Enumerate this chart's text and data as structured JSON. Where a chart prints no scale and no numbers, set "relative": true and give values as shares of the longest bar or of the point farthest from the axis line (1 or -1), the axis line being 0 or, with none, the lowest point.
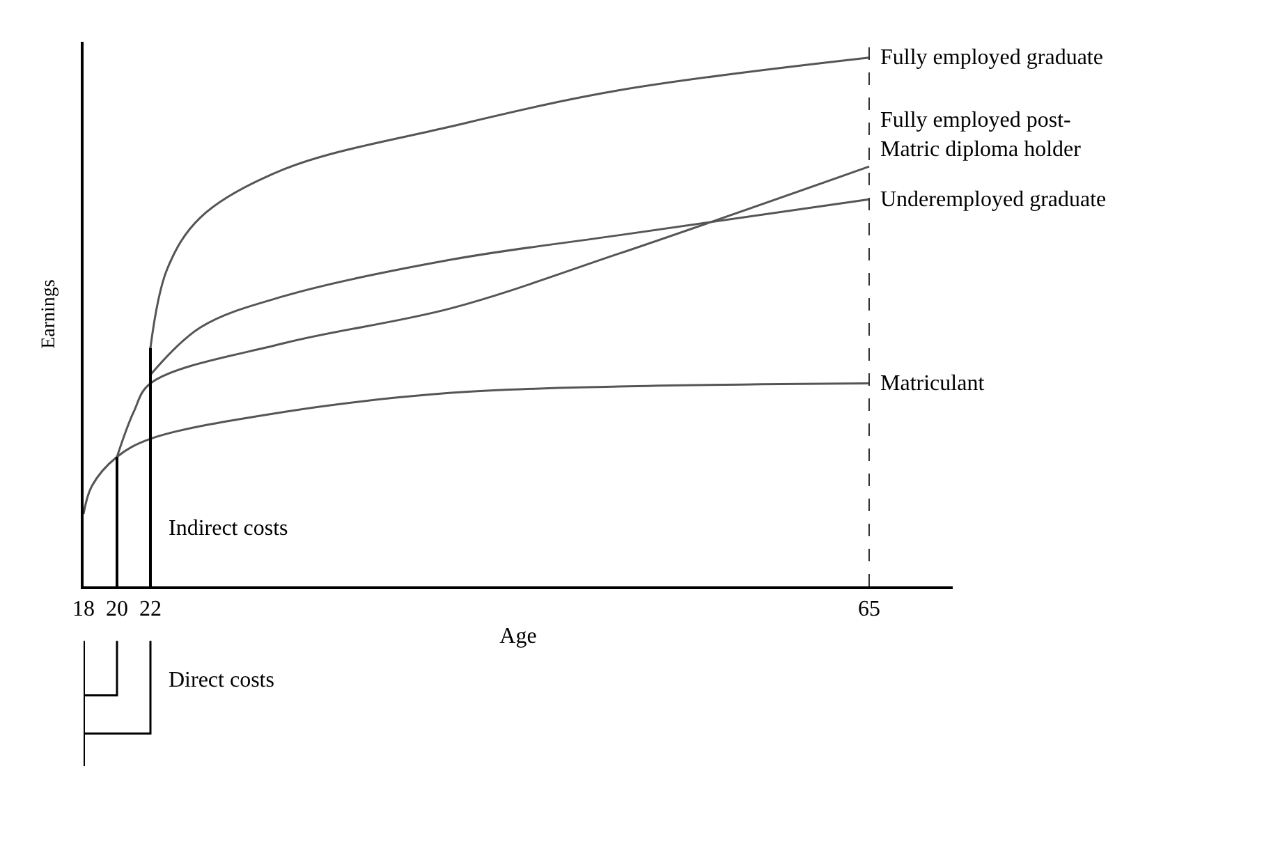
{
  "chart_data": {
    "type": "line",
    "relative": true,
    "xlabel": "Age",
    "ylabel": "Earnings",
    "xlim": [
      18,
      70
    ],
    "xticks": [
      18,
      20,
      22,
      65
    ],
    "tick_labels": "x",
    "legend": false,
    "marker": "none",
    "series": [
      {
        "name": "Fully employed graduate",
        "color": "#555555",
        "x": [
          22,
          23,
          25,
          30,
          40,
          50,
          65
        ],
        "values": [
          0.451,
          0.6,
          0.698,
          0.789,
          0.87,
          0.938,
          1
        ]
      },
      {
        "name": "Fully employed post-\nMatric diploma holder",
        "color": "#555555",
        "x": [
          20,
          21,
          22,
          30,
          40,
          50,
          65
        ],
        "values": [
          0.245,
          0.33,
          0.384,
          0.46,
          0.526,
          0.629,
          0.794
        ]
      },
      {
        "name": "Underemployed graduate",
        "color": "#555555",
        "x": [
          22,
          25,
          30,
          40,
          50,
          65
        ],
        "values": [
          0.4,
          0.49,
          0.549,
          0.618,
          0.664,
          0.732
        ]
      },
      {
        "name": "Matriculant",
        "color": "#555555",
        "x": [
          18,
          18.5,
          20,
          22,
          30,
          40,
          50,
          65
        ],
        "values": [
          0.137,
          0.19,
          0.245,
          0.279,
          0.33,
          0.366,
          0.378,
          0.384
        ]
      },
      {
        "color": "#000000",
        "x": [
          20,
          20
        ],
        "values": [
          0,
          0.245
        ]
      },
      {
        "color": "#000000",
        "x": [
          22,
          22
        ],
        "values": [
          0,
          0.451
        ]
      }
    ],
    "ref_lines": [
      {
        "axis": "x",
        "value": 65,
        "color": "#333333",
        "line_style": "dashed"
      }
    ],
    "annotations": [
      "Indirect costs",
      "Direct costs"
    ]
  }
}
